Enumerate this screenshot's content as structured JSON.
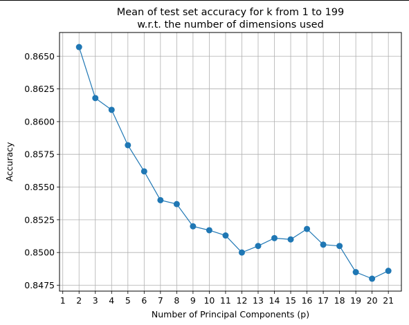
{
  "chart_data": {
    "type": "line",
    "title_line1": "Mean of test set accuracy for k from 1 to 199",
    "title_line2": "w.r.t. the number of dimensions used",
    "xlabel": "Number of Principal Components (p)",
    "ylabel": "Accuracy",
    "grid": true,
    "xlim": [
      0.8,
      21.8
    ],
    "ylim": [
      0.84705,
      0.86681
    ],
    "x_ticks": [
      1,
      2,
      3,
      4,
      5,
      6,
      7,
      8,
      9,
      10,
      11,
      12,
      13,
      14,
      15,
      16,
      17,
      18,
      19,
      20,
      21
    ],
    "y_ticks": [
      "0.8475",
      "0.8500",
      "0.8525",
      "0.8550",
      "0.8575",
      "0.8600",
      "0.8625",
      "0.8650"
    ],
    "series": [
      {
        "color": "#1f77b4",
        "x": [
          2,
          3,
          4,
          5,
          6,
          7,
          8,
          9,
          10,
          11,
          12,
          13,
          14,
          15,
          16,
          17,
          18,
          19,
          20,
          21
        ],
        "y": [
          0.8657,
          0.8618,
          0.8609,
          0.8582,
          0.8562,
          0.854,
          0.8537,
          0.852,
          0.8517,
          0.8513,
          0.85,
          0.8505,
          0.8511,
          0.851,
          0.8518,
          0.8506,
          0.8505,
          0.8485,
          0.848,
          0.8486
        ]
      }
    ]
  }
}
